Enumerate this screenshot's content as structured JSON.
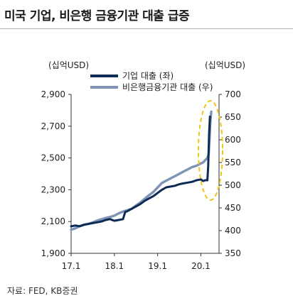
{
  "title": "미국 기업, 비은행 금융기관 대출 급증",
  "source": "자료: FED, KB증권",
  "chart_data": {
    "type": "line",
    "left_axis_unit": "(십억USD)",
    "right_axis_unit": "(십억USD)",
    "x_ticks": [
      "17.1",
      "18.1",
      "19.1",
      "20.1"
    ],
    "y_left_ticks": [
      "1,900",
      "2,100",
      "2,300",
      "2,500",
      "2,700",
      "2,900"
    ],
    "y_right_ticks": [
      "350",
      "400",
      "450",
      "500",
      "550",
      "600",
      "650",
      "700"
    ],
    "ylim_left": [
      1900,
      2900
    ],
    "ylim_right": [
      350,
      700
    ],
    "xlim": [
      2017.0,
      2020.42
    ],
    "series": [
      {
        "name": "기업 대출 (좌)",
        "axis": "left",
        "color": "#0d2b55",
        "x": [
          2017.0,
          2017.1,
          2017.2,
          2017.3,
          2017.4,
          2017.5,
          2017.6,
          2017.7,
          2017.8,
          2017.9,
          2018.0,
          2018.1,
          2018.2,
          2018.25,
          2018.3,
          2018.4,
          2018.5,
          2018.6,
          2018.7,
          2018.8,
          2018.9,
          2019.0,
          2019.1,
          2019.2,
          2019.3,
          2019.4,
          2019.5,
          2019.6,
          2019.7,
          2019.8,
          2019.9,
          2020.0,
          2020.05,
          2020.1,
          2020.15,
          2020.17,
          2020.19,
          2020.21
        ],
        "y": [
          2070,
          2075,
          2070,
          2080,
          2085,
          2090,
          2095,
          2100,
          2110,
          2115,
          2105,
          2110,
          2115,
          2160,
          2165,
          2180,
          2195,
          2210,
          2230,
          2245,
          2260,
          2280,
          2300,
          2315,
          2320,
          2325,
          2335,
          2340,
          2345,
          2350,
          2360,
          2365,
          2355,
          2360,
          2360,
          2450,
          2650,
          2760
        ]
      },
      {
        "name": "비은행금융기관 대출 (우)",
        "axis": "right",
        "color": "#7f93b5",
        "x": [
          2017.0,
          2017.1,
          2017.2,
          2017.3,
          2017.4,
          2017.5,
          2017.6,
          2017.7,
          2017.8,
          2017.9,
          2018.0,
          2018.1,
          2018.2,
          2018.3,
          2018.4,
          2018.5,
          2018.6,
          2018.7,
          2018.8,
          2018.9,
          2019.0,
          2019.1,
          2019.2,
          2019.3,
          2019.4,
          2019.5,
          2019.6,
          2019.7,
          2019.8,
          2019.9,
          2020.0,
          2020.05,
          2020.1,
          2020.15,
          2020.18,
          2020.2,
          2020.22,
          2020.24
        ],
        "y": [
          402,
          405,
          410,
          413,
          415,
          418,
          422,
          425,
          428,
          430,
          433,
          438,
          442,
          445,
          448,
          455,
          462,
          470,
          478,
          485,
          495,
          505,
          510,
          515,
          520,
          525,
          530,
          535,
          540,
          543,
          548,
          550,
          555,
          560,
          568,
          600,
          640,
          662
        ]
      }
    ],
    "legend_position": "top-center",
    "highlight": "ellipse around latest values (2020)"
  }
}
